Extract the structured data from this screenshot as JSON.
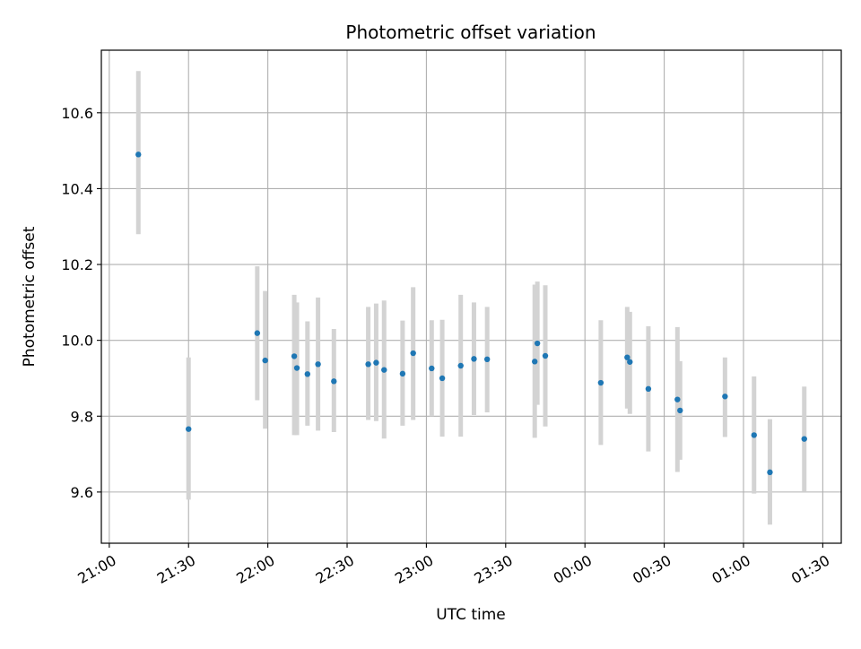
{
  "chart_data": {
    "type": "scatter",
    "title": "Photometric offset variation",
    "xlabel": "UTC time",
    "ylabel": "Photometric offset",
    "grid": true,
    "legend": "none",
    "x_axis": {
      "kind": "time",
      "unit": "minutes",
      "xlim": [
        "20:57",
        "01:37"
      ],
      "ticks": [
        "21:00",
        "21:30",
        "22:00",
        "22:30",
        "23:00",
        "23:30",
        "00:00",
        "00:30",
        "01:00",
        "01:30"
      ]
    },
    "y_axis": {
      "ylim": [
        9.465,
        10.765
      ],
      "ticks": [
        "9.6",
        "9.8",
        "10.0",
        "10.2",
        "10.4",
        "10.6"
      ]
    },
    "colors": {
      "marker": "#1f77b4",
      "errorbar": "#d3d3d3",
      "grid": "#b0b0b0"
    },
    "series": [
      {
        "points": [
          {
            "x": "21:11",
            "y": 10.49,
            "err_low": 10.28,
            "err_high": 10.71
          },
          {
            "x": "21:30",
            "y": 9.766,
            "err_low": 9.58,
            "err_high": 9.955
          },
          {
            "x": "21:56",
            "y": 10.019,
            "err_low": 9.842,
            "err_high": 10.195
          },
          {
            "x": "21:59",
            "y": 9.947,
            "err_low": 9.767,
            "err_high": 10.13
          },
          {
            "x": "22:10",
            "y": 9.958,
            "err_low": 9.75,
            "err_high": 10.12
          },
          {
            "x": "22:11",
            "y": 9.927,
            "err_low": 9.75,
            "err_high": 10.1
          },
          {
            "x": "22:15",
            "y": 9.911,
            "err_low": 9.775,
            "err_high": 10.05
          },
          {
            "x": "22:19",
            "y": 9.937,
            "err_low": 9.762,
            "err_high": 10.113
          },
          {
            "x": "22:25",
            "y": 9.892,
            "err_low": 9.758,
            "err_high": 10.03
          },
          {
            "x": "22:38",
            "y": 9.937,
            "err_low": 9.79,
            "err_high": 10.088
          },
          {
            "x": "22:41",
            "y": 9.941,
            "err_low": 9.787,
            "err_high": 10.097
          },
          {
            "x": "22:44",
            "y": 9.922,
            "err_low": 9.741,
            "err_high": 10.105
          },
          {
            "x": "22:51",
            "y": 9.912,
            "err_low": 9.775,
            "err_high": 10.052
          },
          {
            "x": "22:55",
            "y": 9.966,
            "err_low": 9.79,
            "err_high": 10.14
          },
          {
            "x": "23:02",
            "y": 9.926,
            "err_low": 9.8,
            "err_high": 10.053
          },
          {
            "x": "23:06",
            "y": 9.9,
            "err_low": 9.746,
            "err_high": 10.054
          },
          {
            "x": "23:13",
            "y": 9.933,
            "err_low": 9.746,
            "err_high": 10.12
          },
          {
            "x": "23:18",
            "y": 9.951,
            "err_low": 9.803,
            "err_high": 10.1
          },
          {
            "x": "23:23",
            "y": 9.95,
            "err_low": 9.81,
            "err_high": 10.088
          },
          {
            "x": "23:41",
            "y": 9.944,
            "err_low": 9.743,
            "err_high": 10.147
          },
          {
            "x": "23:42",
            "y": 9.992,
            "err_low": 9.83,
            "err_high": 10.155
          },
          {
            "x": "23:45",
            "y": 9.959,
            "err_low": 9.773,
            "err_high": 10.145
          },
          {
            "x": "00:06",
            "y": 9.888,
            "err_low": 9.724,
            "err_high": 10.053
          },
          {
            "x": "00:16",
            "y": 9.955,
            "err_low": 9.82,
            "err_high": 10.088
          },
          {
            "x": "00:17",
            "y": 9.943,
            "err_low": 9.806,
            "err_high": 10.075
          },
          {
            "x": "00:24",
            "y": 9.872,
            "err_low": 9.707,
            "err_high": 10.037
          },
          {
            "x": "00:35",
            "y": 9.844,
            "err_low": 9.653,
            "err_high": 10.035
          },
          {
            "x": "00:36",
            "y": 9.815,
            "err_low": 9.685,
            "err_high": 9.945
          },
          {
            "x": "00:53",
            "y": 9.852,
            "err_low": 9.745,
            "err_high": 9.955
          },
          {
            "x": "01:04",
            "y": 9.75,
            "err_low": 9.596,
            "err_high": 9.905
          },
          {
            "x": "01:10",
            "y": 9.652,
            "err_low": 9.514,
            "err_high": 9.792
          },
          {
            "x": "01:23",
            "y": 9.74,
            "err_low": 9.6,
            "err_high": 9.878
          }
        ]
      }
    ]
  }
}
